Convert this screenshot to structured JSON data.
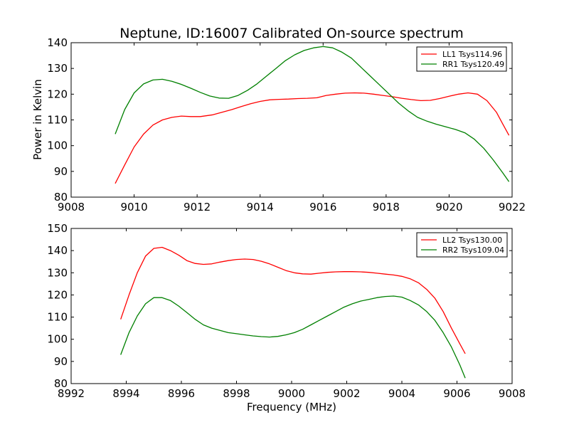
{
  "figure": {
    "title": "Neptune, ID:16007 Calibrated On-source spectrum",
    "xlabel": "Frequency (MHz)",
    "ylabel": "Power in Kelvin"
  },
  "colors": {
    "red": "#ff0000",
    "green": "#008000"
  },
  "chart_data": [
    {
      "type": "line",
      "title": "Neptune, ID:16007 Calibrated On-source spectrum",
      "xlabel": "",
      "ylabel": "Power in Kelvin",
      "xlim": [
        9008,
        9022
      ],
      "ylim": [
        80,
        140
      ],
      "xticks": [
        9008,
        9010,
        9012,
        9014,
        9016,
        9018,
        9020,
        9022
      ],
      "yticks": [
        80,
        90,
        100,
        110,
        120,
        130,
        140
      ],
      "grid": false,
      "legend": "top-right",
      "series": [
        {
          "name": "LL1 Tsys114.96",
          "color": "#ff0000",
          "x": [
            9009.4,
            9009.7,
            9010.0,
            9010.3,
            9010.6,
            9010.9,
            9011.2,
            9011.5,
            9011.8,
            9012.1,
            9012.5,
            9012.8,
            9013.1,
            9013.4,
            9013.7,
            9014.0,
            9014.3,
            9014.6,
            9014.9,
            9015.2,
            9015.5,
            9015.8,
            9016.1,
            9016.4,
            9016.7,
            9017.0,
            9017.3,
            9017.6,
            9017.9,
            9018.2,
            9018.5,
            9018.8,
            9019.1,
            9019.4,
            9019.7,
            9020.0,
            9020.3,
            9020.6,
            9020.9,
            9021.2,
            9021.5,
            9021.7,
            9021.9
          ],
          "y": [
            85.3,
            92.5,
            99.5,
            104.5,
            108.0,
            110.0,
            111.0,
            111.5,
            111.3,
            111.3,
            112.0,
            113.0,
            114.0,
            115.2,
            116.3,
            117.2,
            117.8,
            118.0,
            118.1,
            118.3,
            118.4,
            118.6,
            119.5,
            120.0,
            120.4,
            120.5,
            120.4,
            120.0,
            119.5,
            119.0,
            118.4,
            117.9,
            117.5,
            117.6,
            118.3,
            119.2,
            120.0,
            120.5,
            120.0,
            117.5,
            113.0,
            108.5,
            104.0
          ]
        },
        {
          "name": "RR1 Tsys120.49",
          "color": "#008000",
          "x": [
            9009.4,
            9009.7,
            9010.0,
            9010.3,
            9010.6,
            9010.9,
            9011.2,
            9011.5,
            9011.8,
            9012.1,
            9012.4,
            9012.7,
            9013.0,
            9013.3,
            9013.6,
            9013.9,
            9014.2,
            9014.5,
            9014.8,
            9015.1,
            9015.4,
            9015.7,
            9016.0,
            9016.3,
            9016.6,
            9016.9,
            9017.2,
            9017.5,
            9017.8,
            9018.1,
            9018.4,
            9018.7,
            9019.0,
            9019.3,
            9019.6,
            9019.9,
            9020.2,
            9020.5,
            9020.8,
            9021.1,
            9021.4,
            9021.7,
            9021.9
          ],
          "y": [
            104.5,
            114.0,
            120.5,
            124.0,
            125.5,
            125.8,
            125.0,
            123.8,
            122.3,
            120.7,
            119.3,
            118.5,
            118.4,
            119.5,
            121.5,
            124.0,
            127.0,
            130.0,
            133.0,
            135.3,
            137.0,
            138.0,
            138.5,
            138.0,
            136.3,
            134.0,
            130.5,
            127.0,
            123.5,
            120.0,
            116.5,
            113.5,
            111.0,
            109.5,
            108.3,
            107.3,
            106.3,
            105.0,
            102.5,
            99.0,
            94.5,
            89.5,
            86.0
          ]
        }
      ]
    },
    {
      "type": "line",
      "title": "",
      "xlabel": "Frequency (MHz)",
      "ylabel": "",
      "xlim": [
        8992,
        9008
      ],
      "ylim": [
        80,
        150
      ],
      "xticks": [
        8992,
        8994,
        8996,
        8998,
        9000,
        9002,
        9004,
        9006,
        9008
      ],
      "yticks": [
        80,
        90,
        100,
        110,
        120,
        130,
        140,
        150
      ],
      "grid": false,
      "legend": "top-right",
      "series": [
        {
          "name": "LL2 Tsys130.00",
          "color": "#ff0000",
          "x": [
            8993.8,
            8994.1,
            8994.4,
            8994.7,
            8995.0,
            8995.3,
            8995.6,
            8995.9,
            8996.2,
            8996.5,
            8996.8,
            8997.1,
            8997.4,
            8997.7,
            8998.0,
            8998.3,
            8998.6,
            8998.9,
            8999.2,
            8999.5,
            8999.8,
            9000.1,
            9000.4,
            9000.7,
            9001.0,
            9001.3,
            9001.6,
            9001.9,
            9002.2,
            9002.5,
            9002.8,
            9003.1,
            9003.4,
            9003.7,
            9004.0,
            9004.3,
            9004.6,
            9004.9,
            9005.2,
            9005.5,
            9005.8,
            9006.1,
            9006.3
          ],
          "y": [
            109.0,
            120.0,
            130.0,
            137.5,
            141.0,
            141.5,
            140.0,
            138.0,
            135.5,
            134.2,
            133.8,
            134.0,
            134.8,
            135.5,
            136.0,
            136.2,
            136.0,
            135.2,
            134.0,
            132.5,
            131.0,
            130.0,
            129.5,
            129.4,
            129.8,
            130.2,
            130.4,
            130.5,
            130.5,
            130.4,
            130.2,
            129.8,
            129.4,
            129.0,
            128.4,
            127.3,
            125.5,
            122.5,
            118.5,
            112.5,
            105.0,
            98.0,
            93.5
          ]
        },
        {
          "name": "RR2 Tsys109.04",
          "color": "#008000",
          "x": [
            8993.8,
            8994.1,
            8994.4,
            8994.7,
            8995.0,
            8995.3,
            8995.6,
            8995.9,
            8996.2,
            8996.5,
            8996.8,
            8997.1,
            8997.4,
            8997.7,
            8998.0,
            8998.3,
            8998.6,
            8998.9,
            8999.2,
            8999.5,
            8999.8,
            9000.1,
            9000.4,
            9000.7,
            9001.0,
            9001.3,
            9001.6,
            9001.9,
            9002.2,
            9002.5,
            9002.8,
            9003.1,
            9003.4,
            9003.7,
            9004.0,
            9004.3,
            9004.6,
            9004.9,
            9005.2,
            9005.5,
            9005.8,
            9006.1,
            9006.3
          ],
          "y": [
            93.0,
            103.0,
            110.5,
            116.0,
            118.8,
            118.8,
            117.5,
            115.0,
            112.0,
            109.0,
            106.5,
            105.0,
            104.0,
            103.0,
            102.5,
            102.0,
            101.5,
            101.2,
            101.0,
            101.3,
            102.0,
            103.0,
            104.5,
            106.5,
            108.5,
            110.5,
            112.5,
            114.5,
            116.0,
            117.2,
            118.0,
            118.8,
            119.3,
            119.5,
            119.0,
            117.5,
            115.5,
            112.5,
            108.5,
            103.0,
            96.5,
            88.5,
            82.5
          ]
        }
      ]
    }
  ]
}
